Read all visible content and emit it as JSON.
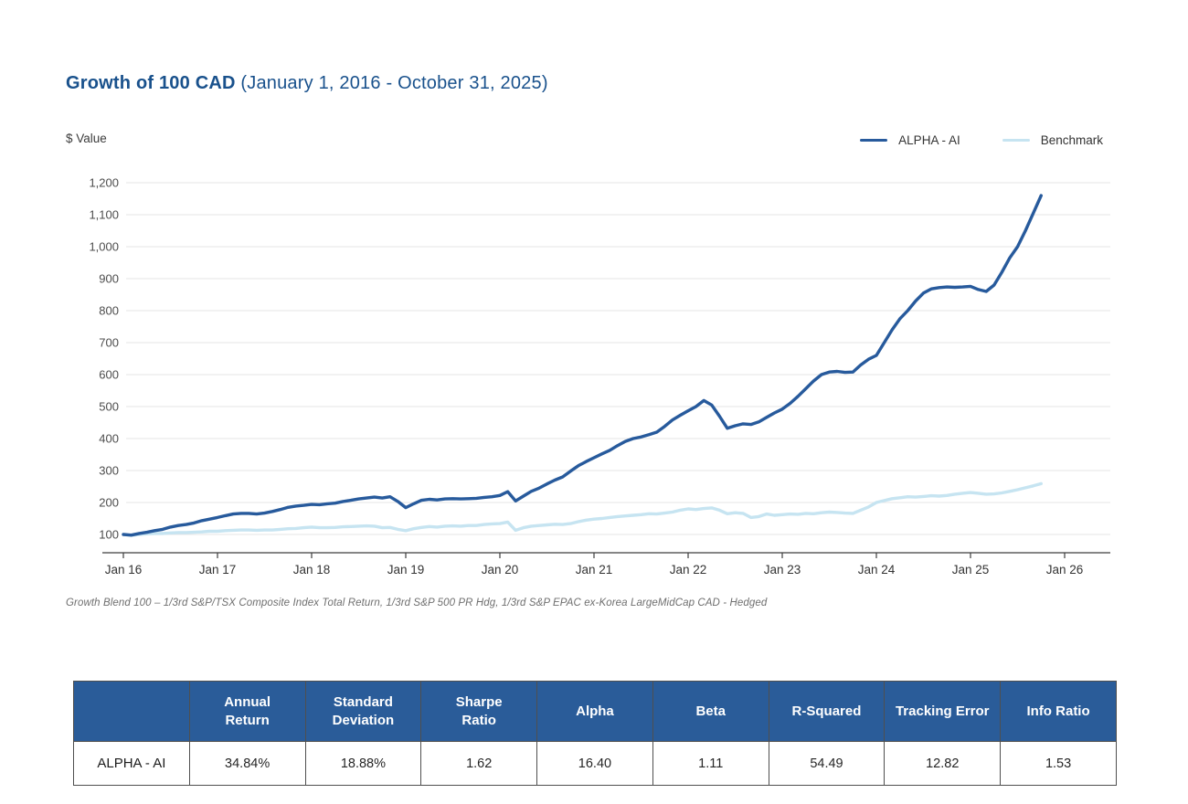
{
  "page": {
    "title_bold": "Growth of 100 CAD",
    "title_rest": " (January 1, 2016 - October 31, 2025)",
    "footnote": "Growth Blend 100 – 1/3rd S&P/TSX Composite Index Total Return, 1/3rd S&P 500 PR Hdg, 1/3rd S&P EPAC ex-Korea LargeMidCap CAD - Hedged"
  },
  "colors": {
    "title_blue": "#19518C",
    "table_header_blue": "#2A5C99",
    "grid": "#E6E6E6",
    "axis": "#3D3D3D"
  },
  "chart_data": {
    "type": "line",
    "title": "Growth of 100 CAD",
    "period": "January 1, 2016 - October 31, 2025",
    "ylabel": "$ Value",
    "xlabel": "",
    "ylim": [
      100,
      1200
    ],
    "grid": "horizontal",
    "legend_position": "top-right",
    "x_unit": "months from Jan 2016",
    "y_ticks": [
      {
        "label": "1,200",
        "value": 1200
      },
      {
        "label": "1,100",
        "value": 1100
      },
      {
        "label": "1,000",
        "value": 1000
      },
      {
        "label": "900",
        "value": 900
      },
      {
        "label": "800",
        "value": 800
      },
      {
        "label": "700",
        "value": 700
      },
      {
        "label": "600",
        "value": 600
      },
      {
        "label": "500",
        "value": 500
      },
      {
        "label": "400",
        "value": 400
      },
      {
        "label": "300",
        "value": 300
      },
      {
        "label": "200",
        "value": 200
      },
      {
        "label": "100",
        "value": 100
      }
    ],
    "x_ticks": [
      {
        "label": "Jan 16",
        "month": 0
      },
      {
        "label": "Jan 17",
        "month": 12
      },
      {
        "label": "Jan 18",
        "month": 24
      },
      {
        "label": "Jan 19",
        "month": 36
      },
      {
        "label": "Jan 20",
        "month": 48
      },
      {
        "label": "Jan 21",
        "month": 60
      },
      {
        "label": "Jan 22",
        "month": 72
      },
      {
        "label": "Jan 23",
        "month": 84
      },
      {
        "label": "Jan 24",
        "month": 96
      },
      {
        "label": "Jan 25",
        "month": 108
      },
      {
        "label": "Jan 26",
        "month": 120
      }
    ],
    "series": [
      {
        "name": "ALPHA - AI",
        "color": "#275A9C",
        "values": [
          100,
          98,
          103,
          107,
          112,
          116,
          123,
          128,
          131,
          136,
          143,
          148,
          153,
          159,
          164,
          166,
          166,
          164,
          167,
          172,
          178,
          185,
          189,
          191,
          194,
          193,
          196,
          198,
          203,
          207,
          211,
          214,
          217,
          214,
          218,
          203,
          184,
          196,
          207,
          210,
          208,
          211,
          212,
          211,
          212,
          213,
          216,
          218,
          222,
          234,
          205,
          220,
          235,
          245,
          258,
          270,
          280,
          298,
          315,
          328,
          340,
          352,
          363,
          378,
          391,
          400,
          405,
          412,
          420,
          438,
          458,
          473,
          487,
          500,
          519,
          505,
          470,
          432,
          440,
          446,
          444,
          452,
          466,
          480,
          492,
          510,
          532,
          556,
          580,
          600,
          608,
          610,
          607,
          608,
          630,
          648,
          660,
          700,
          740,
          775,
          800,
          830,
          855,
          868,
          872,
          874,
          873,
          874,
          876,
          866,
          860,
          880,
          920,
          965,
          1000,
          1050,
          1105,
          1160
        ]
      },
      {
        "name": "Benchmark",
        "color": "#C6E4F1",
        "values": [
          100,
          97,
          100,
          102,
          103,
          103,
          105,
          106,
          106,
          107,
          108,
          110,
          110,
          112,
          113,
          114,
          114,
          113,
          114,
          114,
          116,
          118,
          119,
          121,
          123,
          121,
          121,
          122,
          124,
          125,
          126,
          127,
          126,
          121,
          122,
          116,
          112,
          118,
          122,
          125,
          123,
          126,
          127,
          126,
          128,
          128,
          131,
          133,
          134,
          139,
          113,
          121,
          126,
          128,
          130,
          132,
          131,
          134,
          140,
          145,
          148,
          150,
          153,
          156,
          158,
          160,
          162,
          165,
          164,
          167,
          170,
          176,
          180,
          178,
          181,
          183,
          176,
          165,
          168,
          166,
          153,
          156,
          164,
          160,
          162,
          164,
          163,
          166,
          165,
          168,
          170,
          169,
          167,
          166,
          176,
          186,
          200,
          206,
          212,
          215,
          218,
          217,
          219,
          221,
          220,
          222,
          226,
          229,
          231,
          229,
          226,
          227,
          230,
          235,
          240,
          246,
          252,
          259
        ]
      }
    ]
  },
  "table": {
    "headers": [
      "",
      "Annual\nReturn",
      "Standard\nDeviation",
      "Sharpe\nRatio",
      "Alpha",
      "Beta",
      "R-Squared",
      "Tracking Error",
      "Info Ratio"
    ],
    "rows": [
      {
        "name": "ALPHA - AI",
        "values": [
          "34.84%",
          "18.88%",
          "1.62",
          "16.40",
          "1.11",
          "54.49",
          "12.82",
          "1.53"
        ]
      }
    ]
  }
}
